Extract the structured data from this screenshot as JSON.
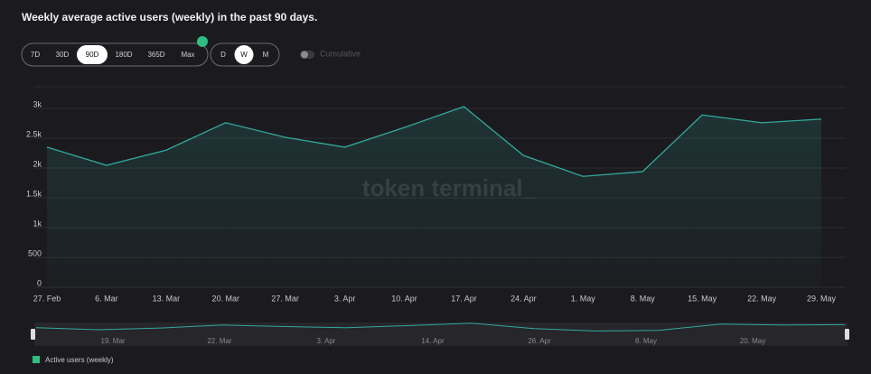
{
  "header": {
    "title": "Weekly average active users (weekly) in the past 90 days."
  },
  "controls": {
    "ranges": [
      "7D",
      "30D",
      "90D",
      "180D",
      "365D",
      "Max"
    ],
    "active_range": 2,
    "granularity": [
      "D",
      "W",
      "M"
    ],
    "active_granularity": 1,
    "cumulative": "Cumulative"
  },
  "chart_data": {
    "type": "line",
    "watermark": "token terminal_",
    "categories": [
      "27. Feb",
      "6. Mar",
      "13. Mar",
      "20. Mar",
      "27. Mar",
      "3. Apr",
      "10. Apr",
      "17. Apr",
      "24. Apr",
      "1. May",
      "8. May",
      "15. May",
      "22. May",
      "29. May"
    ],
    "series": [
      {
        "name": "Active users (weekly)",
        "color": "#33a89b",
        "values": [
          2350,
          2045,
          2300,
          2760,
          2515,
          2350,
          2680,
          3030,
          2210,
          1860,
          1940,
          2890,
          2760,
          2820
        ]
      }
    ],
    "ylim": [
      0,
      3000
    ],
    "yticks": [
      0,
      500,
      {
        "value": 1000,
        "label": "1k"
      },
      {
        "value": 1500,
        "label": "1.5k"
      },
      {
        "value": 2000,
        "label": "2k"
      },
      {
        "value": 2500,
        "label": "2.5k"
      },
      {
        "value": 3000,
        "label": "3k"
      }
    ],
    "grid": true,
    "navigator_labels": [
      "19. Mar",
      "22. Mar",
      "3. Apr",
      "14. Apr",
      "26. Apr",
      "8. May",
      "20. May"
    ]
  }
}
